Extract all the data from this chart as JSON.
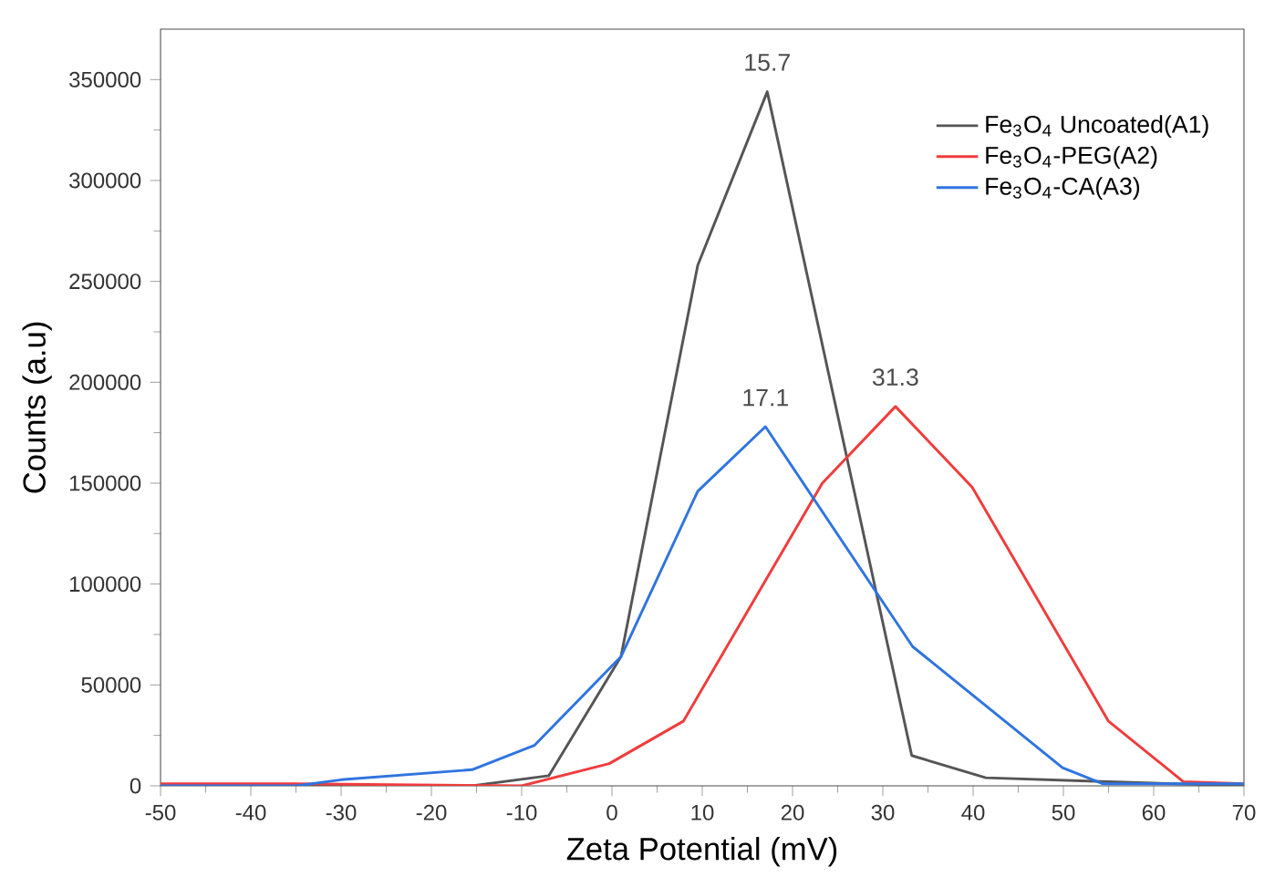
{
  "chart_data": {
    "type": "line",
    "xlabel": "Zeta Potential (mV)",
    "ylabel": "Counts (a.u)",
    "xlim": [
      -50,
      70
    ],
    "xticks": [
      -50,
      -40,
      -30,
      -20,
      -10,
      0,
      10,
      20,
      30,
      40,
      50,
      60,
      70
    ],
    "ylim": [
      0,
      375000
    ],
    "yticks": [
      0,
      50000,
      100000,
      150000,
      200000,
      250000,
      300000,
      350000
    ],
    "legend": "top right",
    "grid": false,
    "marker": "none",
    "line_style": "solid",
    "series": [
      {
        "name": "Fe$_{3}$O$_{4}$ Uncoated(A1)",
        "color": "#555555",
        "x": [
          -50,
          -15.5,
          -7,
          1,
          9.5,
          17.2,
          33.2,
          41.4,
          55,
          70
        ],
        "values": [
          0,
          0,
          5000,
          64000,
          258000,
          344000,
          15000,
          4000,
          2000,
          0
        ]
      },
      {
        "name": "Fe$_{3}$O$_{4}$-PEG(A2)",
        "color": "#f03c3c",
        "x": [
          -50,
          -35,
          -10,
          -0.3,
          7.9,
          23.3,
          31.4,
          39.9,
          55,
          63.3,
          70
        ],
        "values": [
          1000,
          1000,
          0,
          11000,
          32000,
          150000,
          188000,
          148000,
          32000,
          2000,
          1000
        ]
      },
      {
        "name": "Fe$_{3}$O$_{4}$-CA(A3)",
        "color": "#2f74e0",
        "x": [
          -50,
          -35,
          -30,
          -15.5,
          -8.6,
          1,
          9.5,
          17,
          33.3,
          49.9,
          54.4,
          70
        ],
        "values": [
          0,
          0,
          3000,
          8000,
          20000,
          64000,
          146000,
          178000,
          69000,
          9000,
          1000,
          1000
        ]
      }
    ],
    "annotations": [
      {
        "text": "15.7",
        "x": 17.2,
        "y": 344000
      },
      {
        "text": "17.1",
        "x": 17,
        "y": 178000
      },
      {
        "text": "31.3",
        "x": 31.4,
        "y": 188000
      }
    ]
  }
}
